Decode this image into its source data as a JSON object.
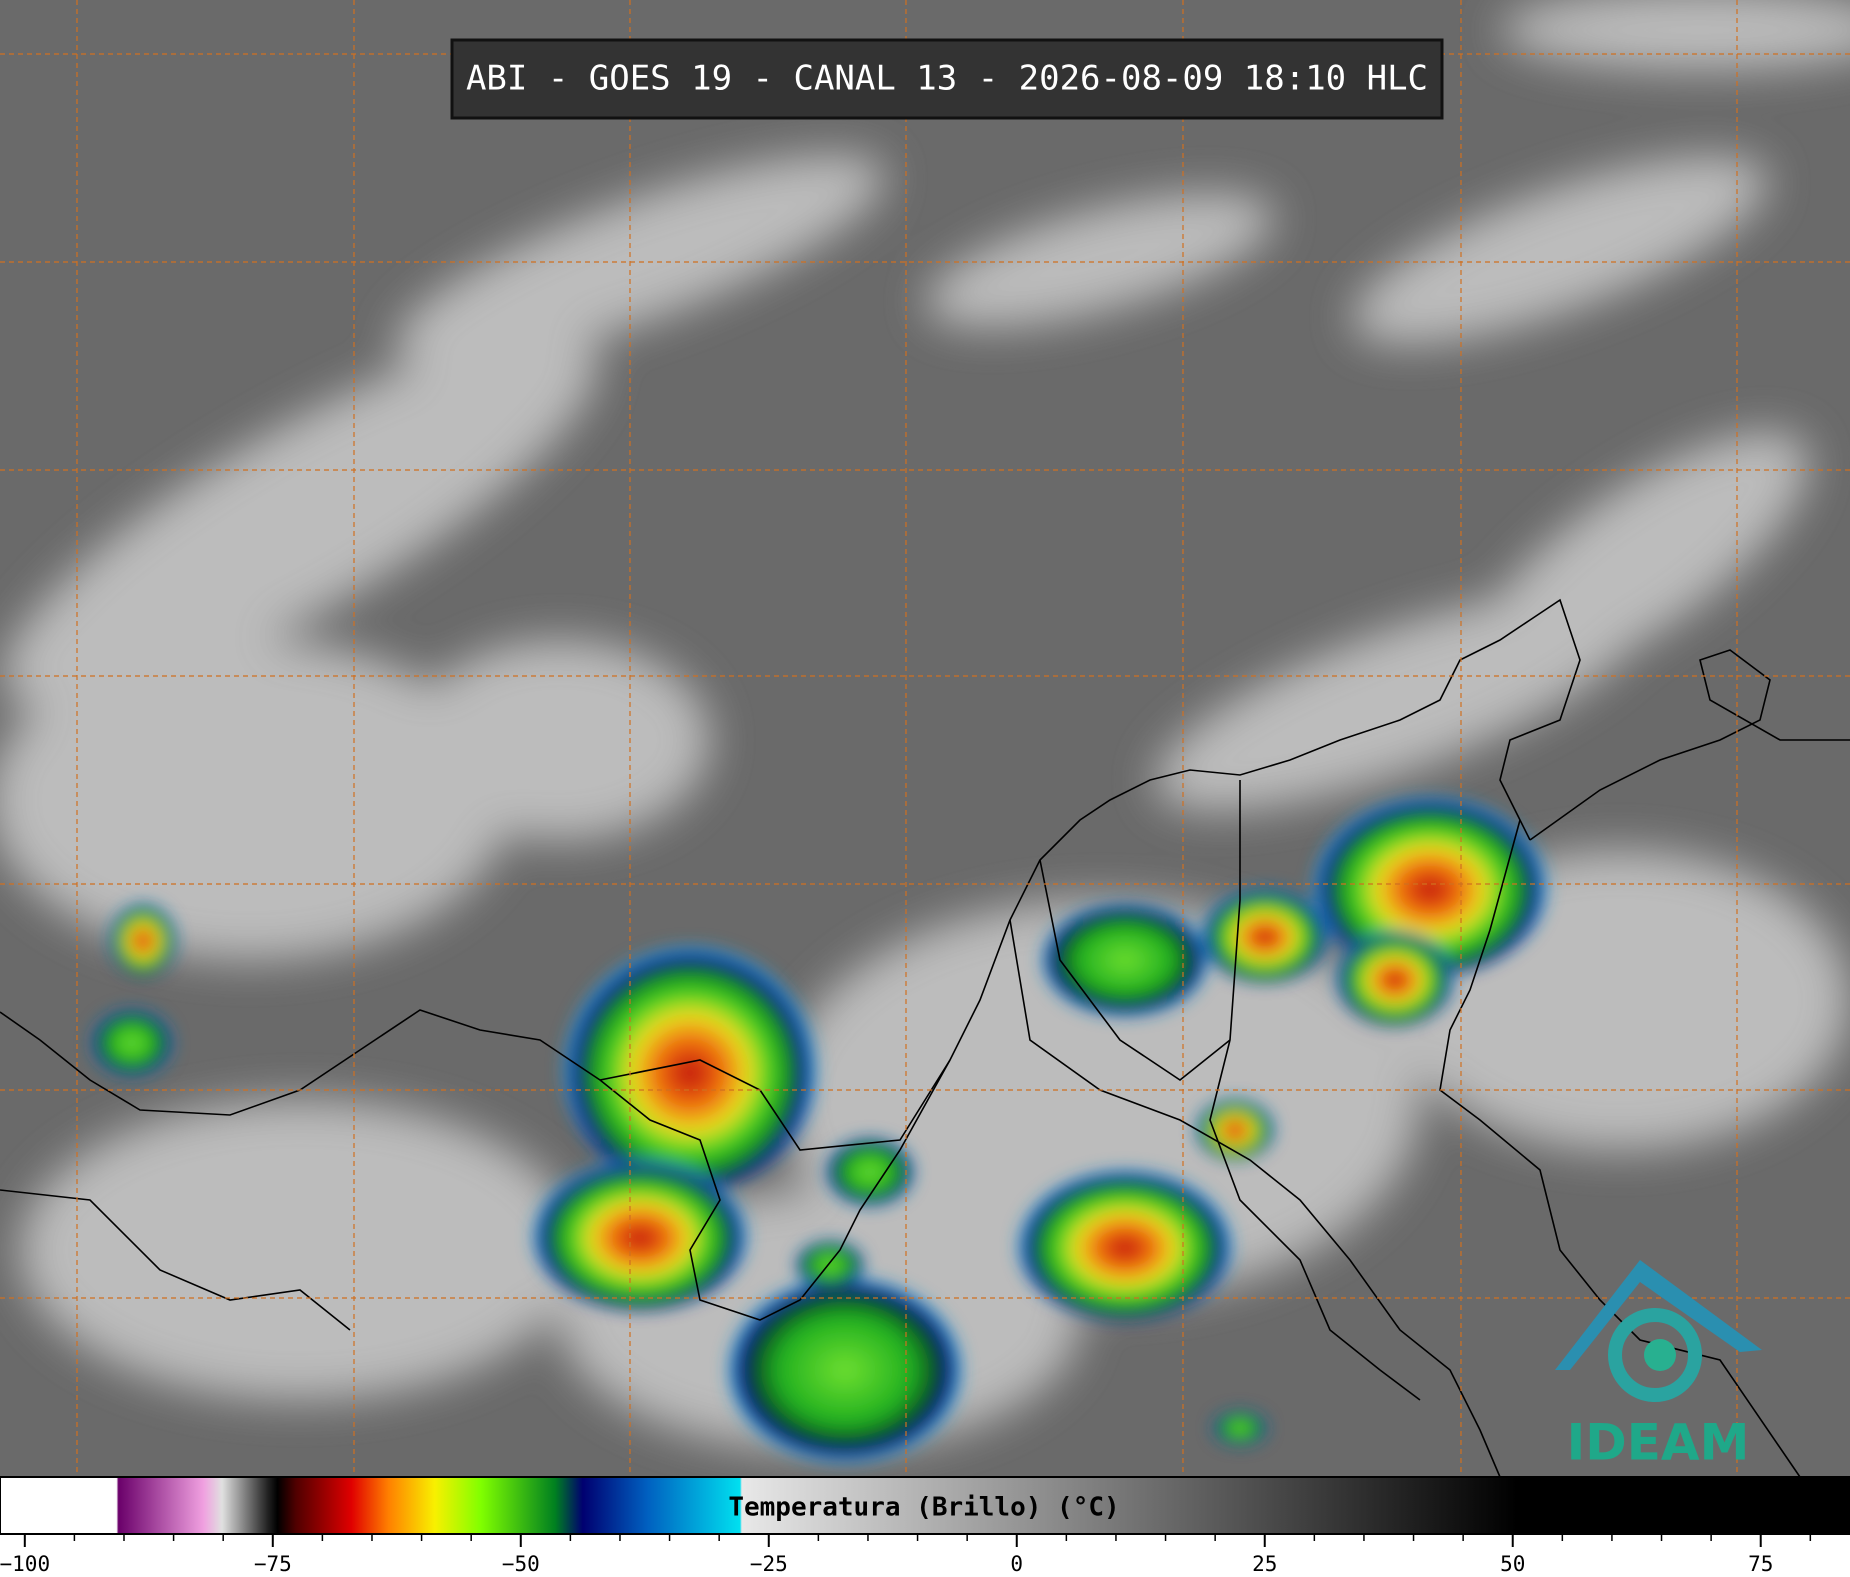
{
  "title": "ABI - GOES 19 - CANAL 13 - 2026-08-09 18:10 HLC",
  "colorbar": {
    "label": "Temperatura (Brillo) (°C)",
    "xlim": [
      -102.5,
      84
    ],
    "ticks": [
      {
        "value": -100,
        "label": "−100"
      },
      {
        "value": -75,
        "label": "−75"
      },
      {
        "value": -50,
        "label": "−50"
      },
      {
        "value": -25,
        "label": "−25"
      },
      0,
      25,
      50,
      75
    ]
  },
  "logo": "IDEAM"
}
